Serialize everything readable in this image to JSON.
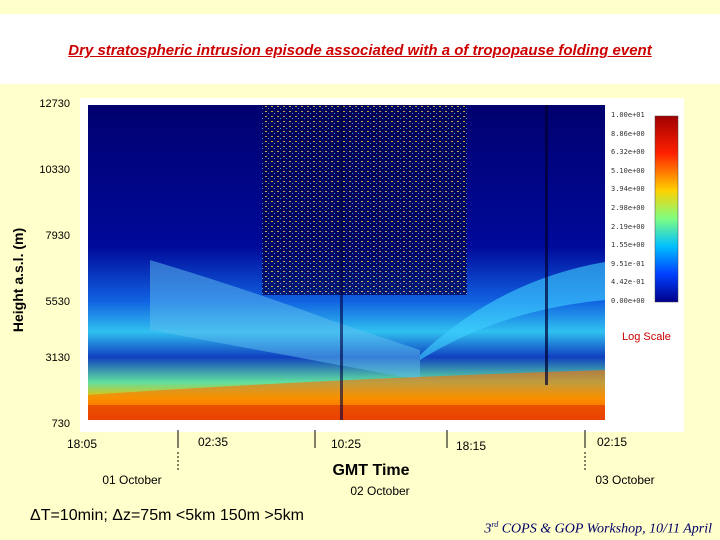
{
  "title": "Dry stratospheric intrusion episode associated with a of tropopause folding event",
  "y_axis_label": "Height a.s.l. (m)",
  "y_ticks": [
    "12730",
    "10330",
    "7930",
    "5530",
    "3130",
    "730"
  ],
  "x_ticks": [
    "18:05",
    "02:35",
    "10:25",
    "18:15",
    "02:15"
  ],
  "x_axis_label": "GMT Time",
  "dates": [
    "01 October",
    "02 October",
    "03 October"
  ],
  "colorbar_labels": [
    "1.00e+01",
    "8.86e+00",
    "6.32e+00",
    "5.10e+00",
    "3.94e+00",
    "2.98e+00",
    "2.19e+00",
    "1.55e+00",
    "9.51e-01",
    "4.42e-01",
    "0.00e+00"
  ],
  "scale_note": "Log Scale",
  "resolution_note": "ΔT=10min; Δz=75m <5km 150m >5km",
  "footer": {
    "ordinal": "3",
    "suffix": "rd",
    "text": " COPS & GOP Workshop, 10/11 April"
  }
}
